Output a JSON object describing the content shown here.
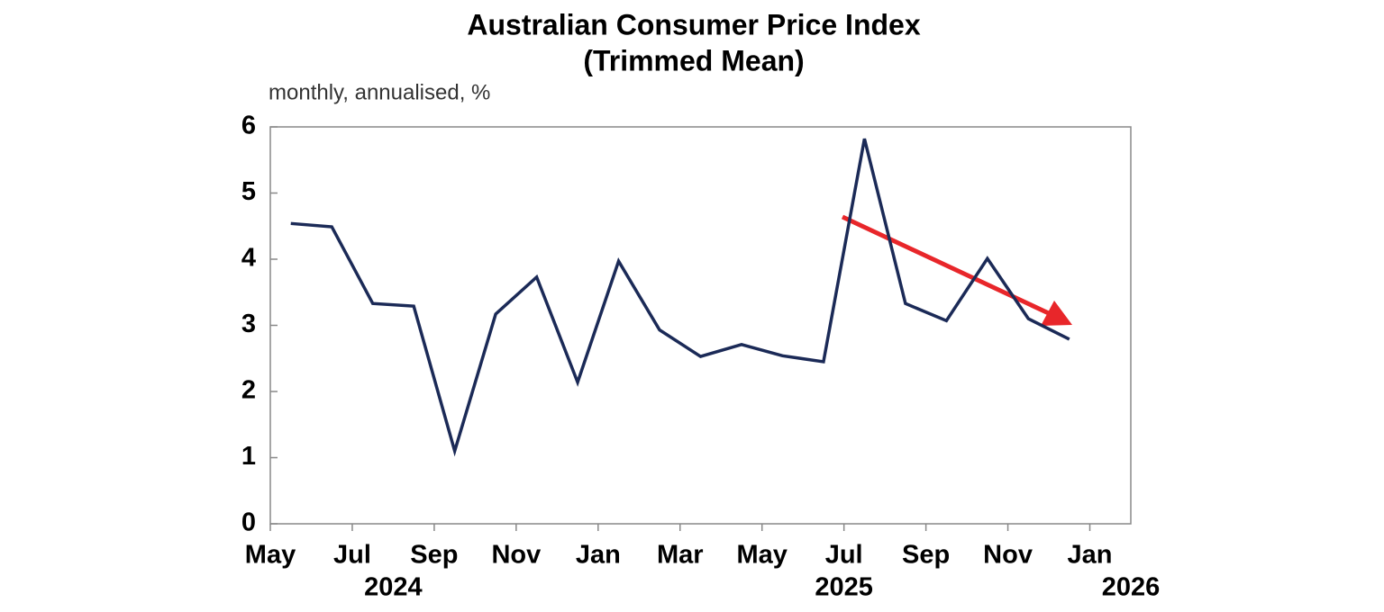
{
  "chart_data": {
    "type": "line",
    "title": "Australian Consumer Price Index",
    "subtitle": "(Trimmed Mean)",
    "y_label": "monthly, annualised, %",
    "x": [
      "2024-05",
      "2024-06",
      "2024-07",
      "2024-08",
      "2024-09",
      "2024-10",
      "2024-11",
      "2024-12",
      "2025-01",
      "2025-02",
      "2025-03",
      "2025-04",
      "2025-05",
      "2025-06",
      "2025-07",
      "2025-08",
      "2025-09",
      "2025-10",
      "2025-11",
      "2025-12"
    ],
    "series": [
      {
        "color": "#1b2a57",
        "values": [
          4.54,
          4.49,
          3.33,
          3.29,
          1.1,
          3.17,
          3.73,
          2.14,
          3.97,
          2.93,
          2.53,
          2.71,
          2.54,
          2.45,
          5.82,
          3.33,
          3.07,
          4.01,
          3.1,
          2.79
        ]
      }
    ],
    "xlim": [
      "2024-05",
      "2026-02"
    ],
    "xticks": [
      {
        "value": "2024-05",
        "label": "May"
      },
      {
        "value": "2024-07",
        "label": "Jul"
      },
      {
        "value": "2024-09",
        "label": "Sep"
      },
      {
        "value": "2024-11",
        "label": "Nov"
      },
      {
        "value": "2025-01",
        "label": "Jan"
      },
      {
        "value": "2025-03",
        "label": "Mar"
      },
      {
        "value": "2025-05",
        "label": "May"
      },
      {
        "value": "2025-07",
        "label": "Jul"
      },
      {
        "value": "2025-09",
        "label": "Sep"
      },
      {
        "value": "2025-11",
        "label": "Nov"
      },
      {
        "value": "2026-01",
        "label": "Jan"
      }
    ],
    "year_labels": [
      {
        "value": "2024-08",
        "label": "2024"
      },
      {
        "value": "2025-07",
        "label": "2025"
      },
      {
        "value": "2026-02",
        "label": "2026"
      }
    ],
    "ylim": [
      0,
      6
    ],
    "yticks": [
      0,
      1,
      2,
      3,
      4,
      5,
      6
    ],
    "grid": false
  }
}
